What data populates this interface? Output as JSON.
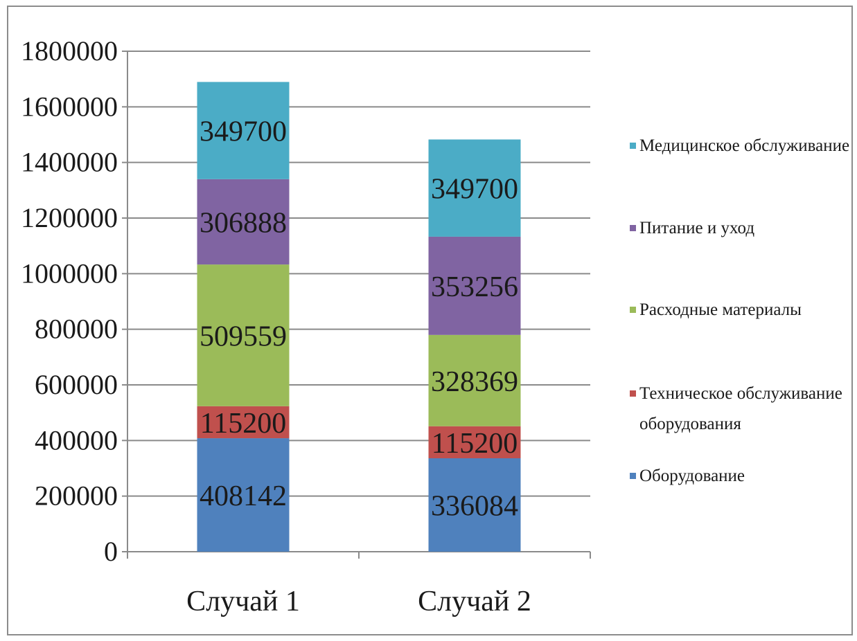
{
  "chart_data": {
    "type": "bar",
    "stacked": true,
    "categories": [
      "Случай 1",
      "Случай 2"
    ],
    "series": [
      {
        "name": "Оборудование",
        "values": [
          408142,
          336084
        ],
        "color": "#4f81bd"
      },
      {
        "name": "Техническое обслуживание оборудования",
        "values": [
          115200,
          115200
        ],
        "color": "#c0504d"
      },
      {
        "name": "Расходные материалы",
        "values": [
          509559,
          328369
        ],
        "color": "#9bbb59"
      },
      {
        "name": "Питание и уход",
        "values": [
          306888,
          353256
        ],
        "color": "#8064a2"
      },
      {
        "name": "Медицинское обслуживание",
        "values": [
          349700,
          349700
        ],
        "color": "#4bacc6"
      }
    ],
    "legend_order": [
      {
        "name": "Медицинское обслуживание",
        "lines": [
          "Медицинское обслуживание"
        ]
      },
      {
        "name": "Питание и уход",
        "lines": [
          "Питание и уход"
        ]
      },
      {
        "name": "Расходные материалы",
        "lines": [
          "Расходные материалы"
        ]
      },
      {
        "name": "Техническое обслуживание оборудования",
        "lines": [
          "Техническое обслуживание",
          "оборудования"
        ]
      },
      {
        "name": "Оборудование",
        "lines": [
          "Оборудование"
        ]
      }
    ],
    "ylim": [
      0,
      1800000
    ],
    "yticks": [
      "0",
      "200000",
      "400000",
      "600000",
      "800000",
      "1000000",
      "1200000",
      "1400000",
      "1600000",
      "1800000"
    ],
    "grid": true,
    "legend_position": "right",
    "title": "",
    "xlabel": "",
    "ylabel": ""
  }
}
